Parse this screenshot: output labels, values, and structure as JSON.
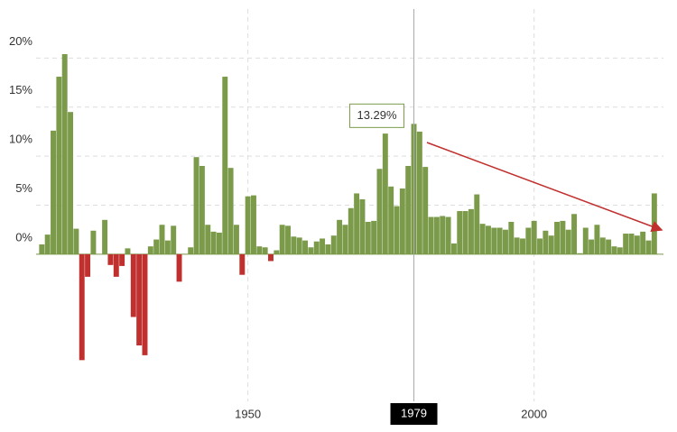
{
  "chart_data": {
    "type": "bar",
    "x": [
      1914,
      1915,
      1916,
      1917,
      1918,
      1919,
      1920,
      1921,
      1922,
      1923,
      1924,
      1925,
      1926,
      1927,
      1928,
      1929,
      1930,
      1931,
      1932,
      1933,
      1934,
      1935,
      1936,
      1937,
      1938,
      1939,
      1940,
      1941,
      1942,
      1943,
      1944,
      1945,
      1946,
      1947,
      1948,
      1949,
      1950,
      1951,
      1952,
      1953,
      1954,
      1955,
      1956,
      1957,
      1958,
      1959,
      1960,
      1961,
      1962,
      1963,
      1964,
      1965,
      1966,
      1967,
      1968,
      1969,
      1970,
      1971,
      1972,
      1973,
      1974,
      1975,
      1976,
      1977,
      1978,
      1979,
      1980,
      1981,
      1982,
      1983,
      1984,
      1985,
      1986,
      1987,
      1988,
      1989,
      1990,
      1991,
      1992,
      1993,
      1994,
      1995,
      1996,
      1997,
      1998,
      1999,
      2000,
      2001,
      2002,
      2003,
      2004,
      2005,
      2006,
      2007,
      2008,
      2009,
      2010,
      2011,
      2012,
      2013,
      2014,
      2015,
      2016,
      2017,
      2018,
      2019,
      2020,
      2021
    ],
    "values": [
      1.0,
      2.0,
      12.6,
      18.1,
      20.4,
      14.5,
      2.6,
      -10.8,
      -2.3,
      2.4,
      0.0,
      3.5,
      -1.1,
      -2.3,
      -1.2,
      0.6,
      -6.4,
      -9.3,
      -10.3,
      0.8,
      1.5,
      3.0,
      1.4,
      2.9,
      -2.8,
      0.0,
      0.7,
      9.9,
      9.0,
      3.0,
      2.3,
      2.2,
      18.1,
      8.8,
      3.0,
      -2.1,
      5.9,
      6.0,
      0.8,
      0.7,
      -0.7,
      0.4,
      3.0,
      2.9,
      1.8,
      1.7,
      1.4,
      0.7,
      1.3,
      1.6,
      1.0,
      1.9,
      3.5,
      3.0,
      4.7,
      6.2,
      5.6,
      3.3,
      3.4,
      8.7,
      12.3,
      6.9,
      4.9,
      6.7,
      9.0,
      13.29,
      12.5,
      8.9,
      3.8,
      3.8,
      3.9,
      3.8,
      1.1,
      4.4,
      4.4,
      4.6,
      6.1,
      3.1,
      2.9,
      2.7,
      2.7,
      2.5,
      3.3,
      1.7,
      1.6,
      2.7,
      3.4,
      1.6,
      2.4,
      1.9,
      3.3,
      3.4,
      2.5,
      4.1,
      0.1,
      2.7,
      1.5,
      3.0,
      1.7,
      1.5,
      0.8,
      0.7,
      2.1,
      2.1,
      1.9,
      2.3,
      1.4,
      6.2
    ],
    "colors": {
      "positive": "#7b9b4a",
      "negative": "#c0302e"
    },
    "xlim": [
      1913,
      2022.6
    ],
    "xticks": [
      1950,
      2000
    ],
    "ylim": [
      -15,
      25
    ],
    "yticks": [
      {
        "value": 0,
        "label": "0%"
      },
      {
        "value": 5,
        "label": "5%"
      },
      {
        "value": 10,
        "label": "10%"
      },
      {
        "value": 15,
        "label": "15%"
      },
      {
        "value": 20,
        "label": "20%"
      }
    ],
    "grid": true,
    "tooltip": {
      "x": 1979,
      "label": "13.29%"
    }
  }
}
